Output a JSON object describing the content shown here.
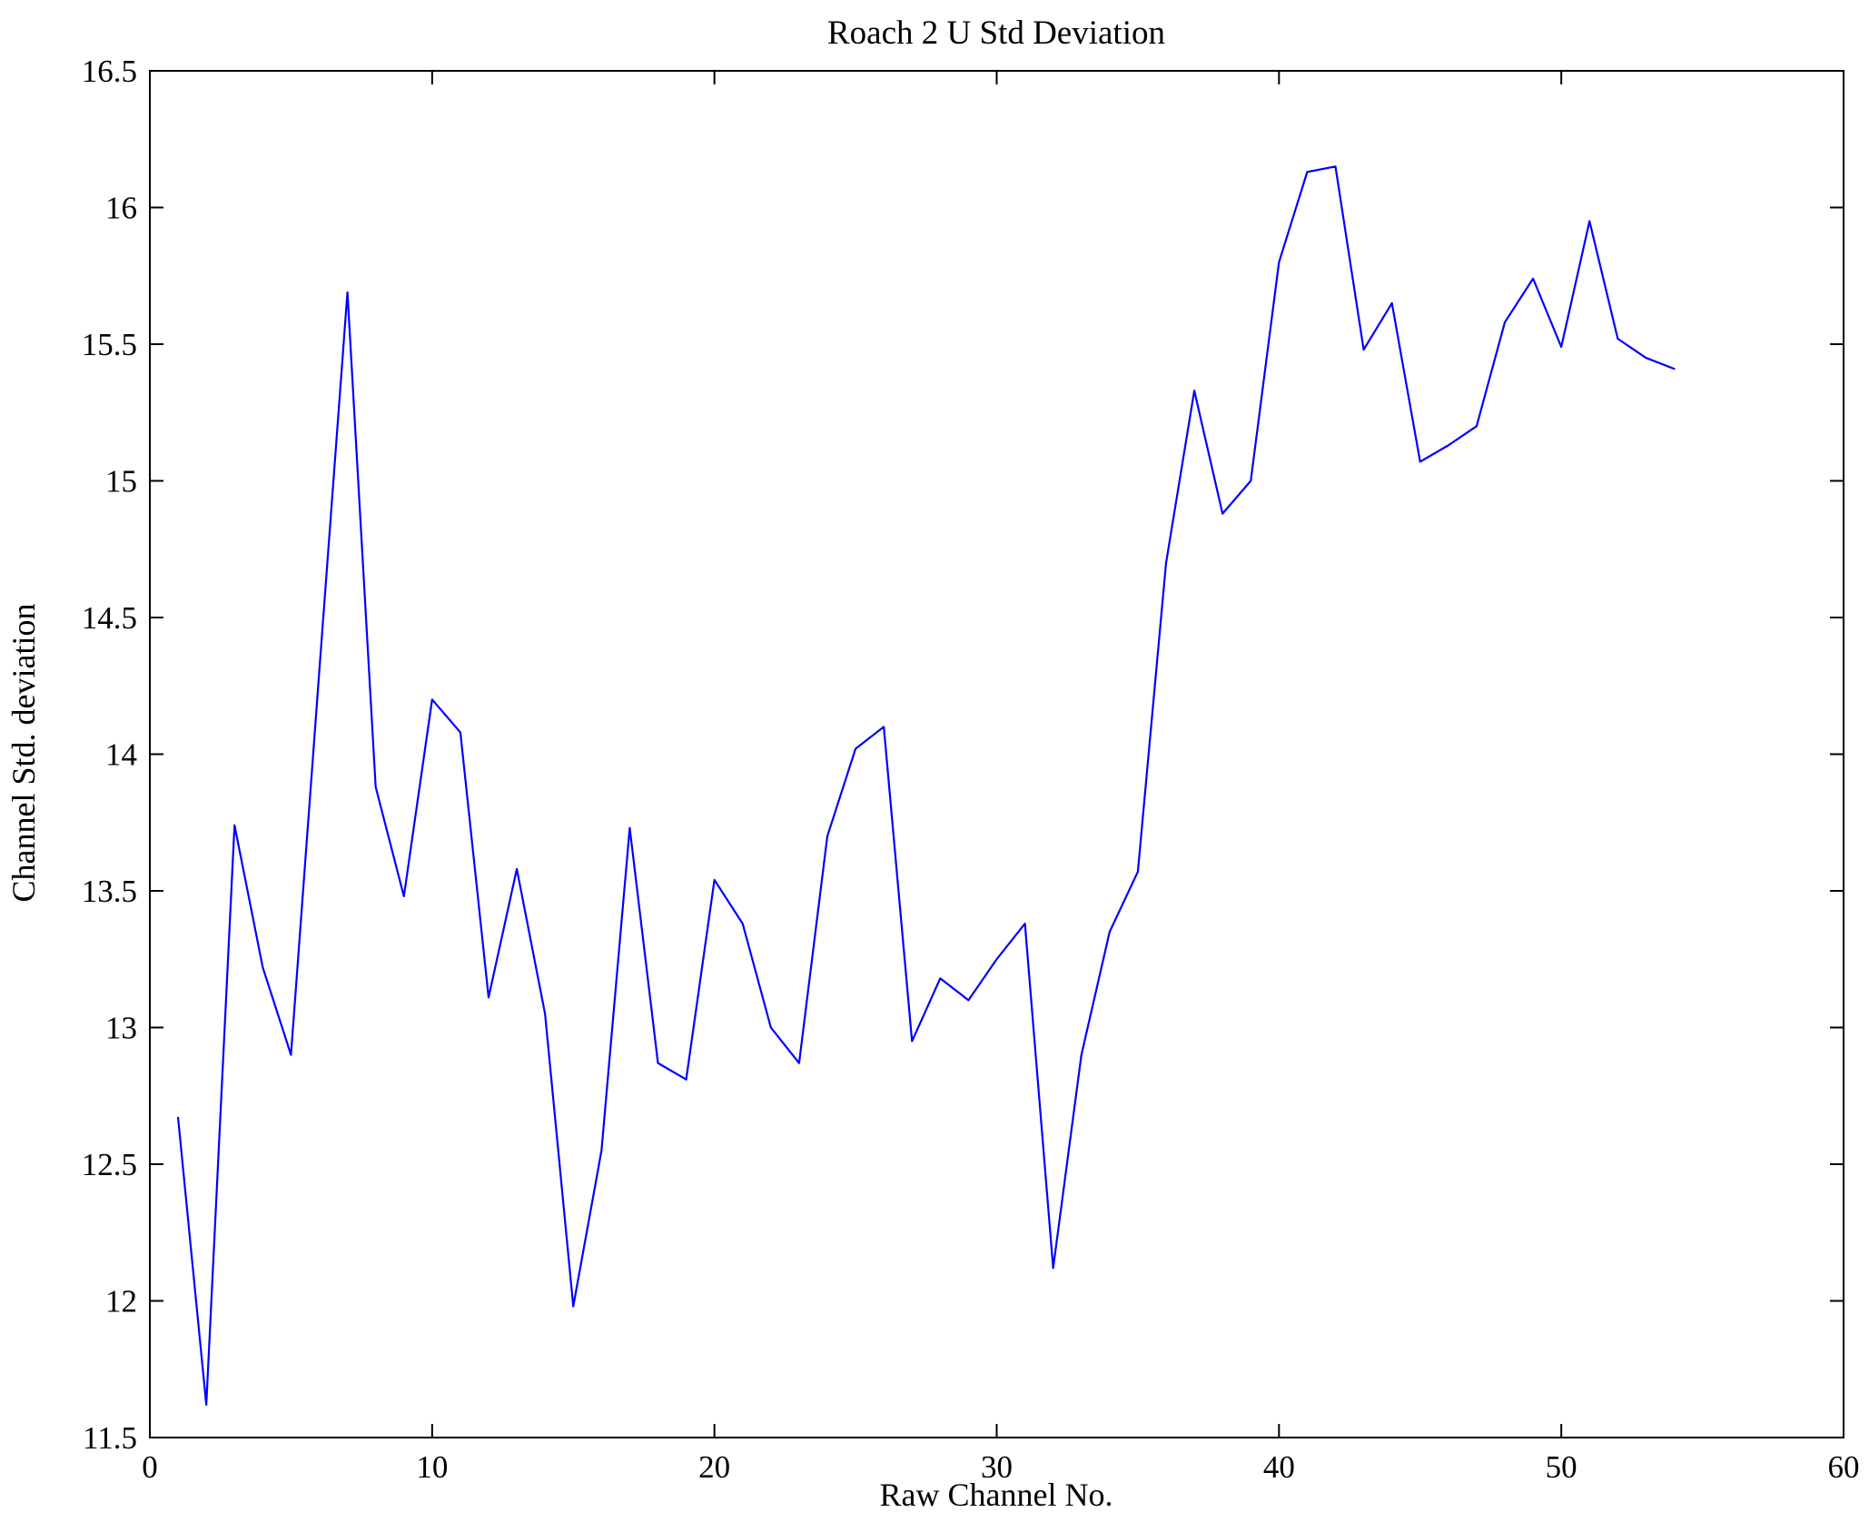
{
  "chart_data": {
    "type": "line",
    "title": "Roach 2 U Std Deviation",
    "xlabel": "Raw Channel No.",
    "ylabel": "Channel Std. deviation",
    "xlim": [
      0,
      60
    ],
    "ylim": [
      11.5,
      16.5
    ],
    "xticks": [
      0,
      10,
      20,
      30,
      40,
      50,
      60
    ],
    "xtick_labels": [
      "0",
      "10",
      "20",
      "30",
      "40",
      "50",
      "60"
    ],
    "yticks": [
      11.5,
      12,
      12.5,
      13,
      13.5,
      14,
      14.5,
      15,
      15.5,
      16,
      16.5
    ],
    "ytick_labels": [
      "11.5",
      "12",
      "12.5",
      "13",
      "13.5",
      "14",
      "14.5",
      "15",
      "15.5",
      "16",
      "16.5"
    ],
    "grid": false,
    "legend_position": "none",
    "line_color": "#0000ff",
    "axis_color": "#000000",
    "x": [
      1,
      2,
      3,
      4,
      5,
      6,
      7,
      8,
      9,
      10,
      11,
      12,
      13,
      14,
      15,
      16,
      17,
      18,
      19,
      20,
      21,
      22,
      23,
      24,
      25,
      26,
      27,
      28,
      29,
      30,
      31,
      32,
      33,
      34,
      35,
      36,
      37,
      38,
      39,
      40,
      41,
      42,
      43,
      44,
      45,
      46,
      47,
      48,
      49,
      50,
      51,
      52,
      53,
      54
    ],
    "values": [
      12.67,
      11.62,
      13.74,
      13.22,
      12.9,
      14.3,
      15.69,
      13.88,
      13.48,
      14.2,
      14.08,
      13.11,
      13.58,
      13.05,
      11.98,
      12.55,
      13.73,
      12.87,
      12.81,
      13.54,
      13.38,
      13.0,
      12.87,
      13.7,
      14.02,
      14.1,
      12.95,
      13.18,
      13.1,
      13.25,
      13.38,
      12.12,
      12.9,
      13.35,
      13.57,
      14.7,
      15.33,
      14.88,
      15.0,
      15.8,
      16.13,
      16.15,
      15.48,
      15.65,
      15.07,
      15.13,
      15.2,
      15.58,
      15.74,
      15.49,
      15.95,
      15.52,
      15.45,
      15.41
    ]
  }
}
